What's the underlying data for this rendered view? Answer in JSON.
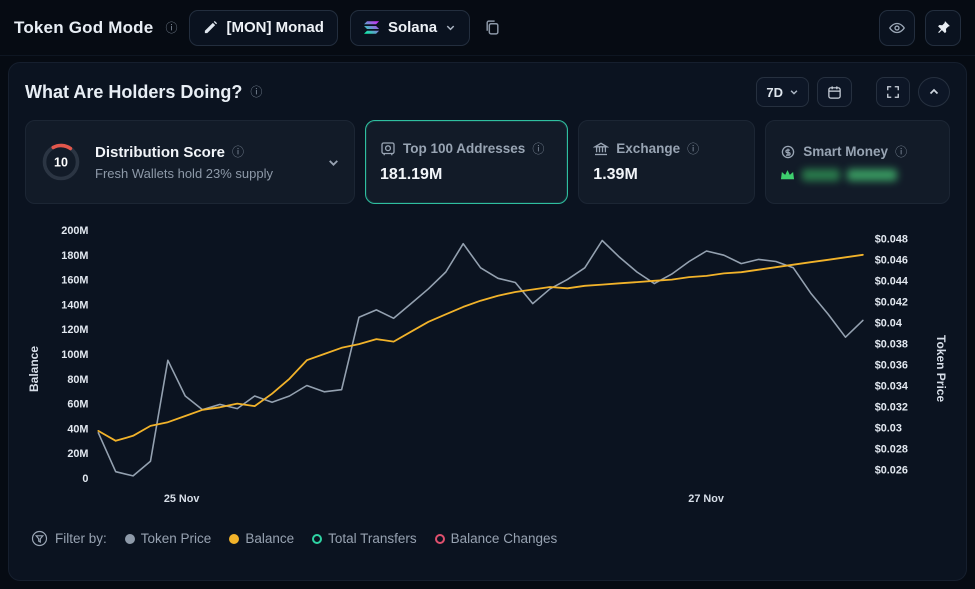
{
  "topbar": {
    "title": "Token God Mode",
    "token_button": {
      "label": "[MON] Monad"
    },
    "chain_button": {
      "label": "Solana"
    }
  },
  "panel": {
    "title": "What Are Holders Doing?",
    "range_button": "7D"
  },
  "cards": {
    "distribution": {
      "score": "10",
      "title": "Distribution Score",
      "subtitle": "Fresh Wallets hold 23% supply"
    },
    "top100": {
      "label": "Top 100 Addresses",
      "value": "181.19M"
    },
    "exchange": {
      "label": "Exchange",
      "value": "1.39M"
    },
    "smart_money": {
      "label": "Smart Money",
      "value_hidden": true
    }
  },
  "legend": {
    "label": "Filter by:",
    "items": [
      {
        "label": "Token Price",
        "color": "#8e9aa9",
        "style": "filled"
      },
      {
        "label": "Balance",
        "color": "#f2b32a",
        "style": "filled"
      },
      {
        "label": "Total Transfers",
        "color": "#2fd3a3",
        "style": "outline"
      },
      {
        "label": "Balance Changes",
        "color": "#e0506e",
        "style": "outline"
      }
    ]
  },
  "colors": {
    "selected_card_border": "#2fbf9f",
    "score_arc": "#e2574c",
    "crown_green": "#3ecf6e"
  },
  "chart_data": {
    "type": "line",
    "title": "What Are Holders Doing?",
    "left_axis": {
      "label": "Balance",
      "min": 0,
      "max": 200,
      "ticks": [
        {
          "label": "200M",
          "value": 200
        },
        {
          "label": "180M",
          "value": 180
        },
        {
          "label": "160M",
          "value": 160
        },
        {
          "label": "140M",
          "value": 140
        },
        {
          "label": "120M",
          "value": 120
        },
        {
          "label": "100M",
          "value": 100
        },
        {
          "label": "80M",
          "value": 80
        },
        {
          "label": "60M",
          "value": 60
        },
        {
          "label": "40M",
          "value": 40
        },
        {
          "label": "20M",
          "value": 20
        },
        {
          "label": "0",
          "value": 0
        }
      ]
    },
    "right_axis": {
      "label": "Token Price",
      "min": 0.0252,
      "max": 0.0488,
      "ticks": [
        {
          "label": "$0.048",
          "value": 0.048
        },
        {
          "label": "$0.046",
          "value": 0.046
        },
        {
          "label": "$0.044",
          "value": 0.044
        },
        {
          "label": "$0.042",
          "value": 0.042
        },
        {
          "label": "$0.04",
          "value": 0.04
        },
        {
          "label": "$0.038",
          "value": 0.038
        },
        {
          "label": "$0.036",
          "value": 0.036
        },
        {
          "label": "$0.034",
          "value": 0.034
        },
        {
          "label": "$0.032",
          "value": 0.032
        },
        {
          "label": "$0.03",
          "value": 0.03
        },
        {
          "label": "$0.028",
          "value": 0.028
        },
        {
          "label": "$0.026",
          "value": 0.026
        }
      ]
    },
    "x_ticks": [
      {
        "label": "25 Nov",
        "pos": 0.109
      },
      {
        "label": "27 Nov",
        "pos": 0.795
      }
    ],
    "series": [
      {
        "name": "Token Price",
        "axis": "right",
        "color": "#94a1b0",
        "width": 1.6,
        "values": [
          0.0295,
          0.0258,
          0.0254,
          0.0268,
          0.0364,
          0.033,
          0.0317,
          0.0322,
          0.0318,
          0.033,
          0.0324,
          0.033,
          0.034,
          0.0334,
          0.0336,
          0.0405,
          0.0412,
          0.0404,
          0.0418,
          0.0432,
          0.0448,
          0.0475,
          0.0452,
          0.0442,
          0.0438,
          0.0418,
          0.0432,
          0.0441,
          0.0452,
          0.0478,
          0.0462,
          0.0448,
          0.0437,
          0.0446,
          0.0458,
          0.0468,
          0.0464,
          0.0456,
          0.046,
          0.0458,
          0.0452,
          0.0428,
          0.0408,
          0.0386,
          0.0402
        ]
      },
      {
        "name": "Balance",
        "axis": "left",
        "color": "#f2b32a",
        "width": 1.8,
        "values": [
          38,
          30,
          34,
          42,
          45,
          50,
          55,
          57,
          60,
          58,
          68,
          80,
          95,
          100,
          105,
          108,
          112,
          110,
          118,
          126,
          132,
          138,
          143,
          147,
          150,
          152,
          154,
          153,
          155,
          156,
          157,
          158,
          159,
          160,
          162,
          163,
          165,
          166,
          168,
          170,
          172,
          174,
          176,
          178,
          180
        ]
      }
    ],
    "legend_position": "bottom",
    "grid": false
  }
}
